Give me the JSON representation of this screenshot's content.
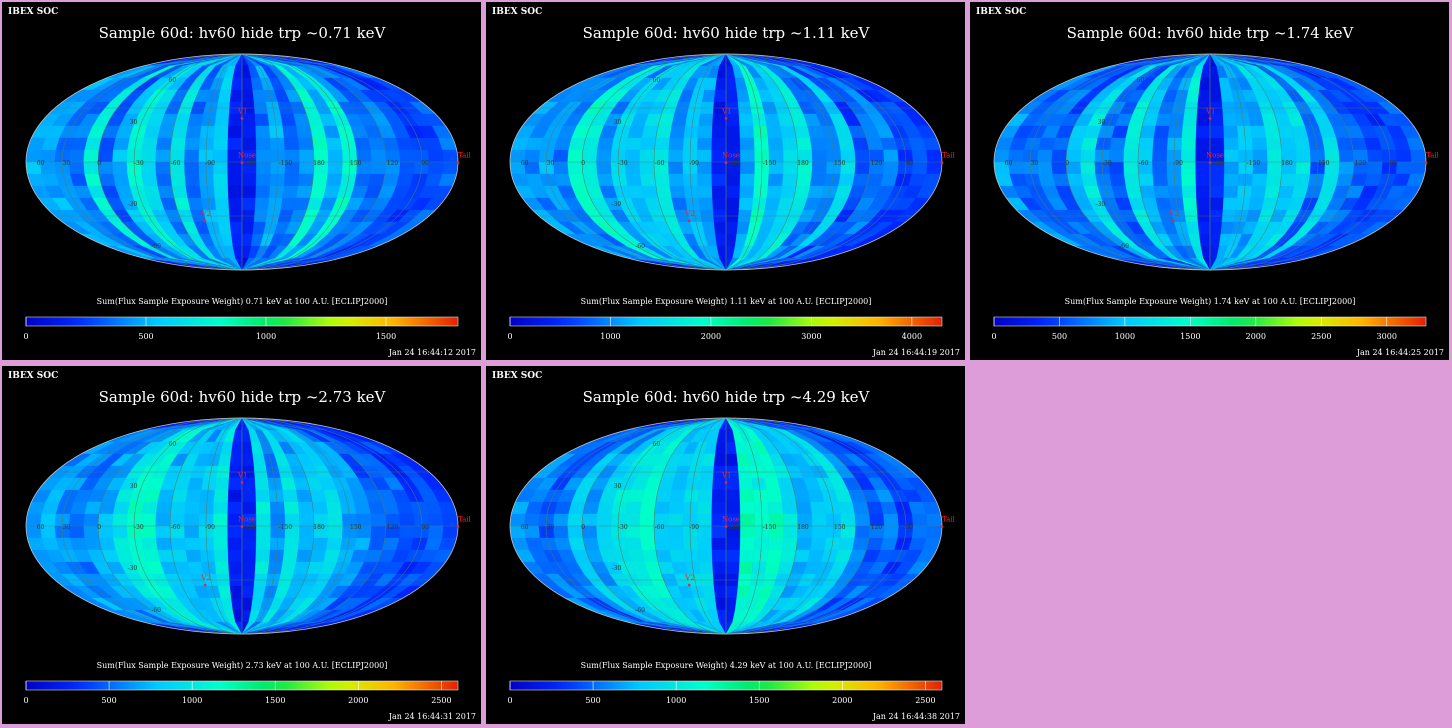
{
  "header_label": "IBEX SOC",
  "colors": {
    "background": "#dc9dd9",
    "panel": "#000000",
    "grid": "#5a7a5a",
    "marker": "#ff2020",
    "text": "#ffffff"
  },
  "chart_data": [
    {
      "type": "heatmap",
      "title": "Sample 60d: hv60 hide trp ~0.71 keV",
      "colorbar_label": "Sum(Flux Sample Exposure Weight)  0.71 keV at 100 A.U. [ECLIPJ2000]",
      "colorbar_ticks": [
        "0",
        "500",
        "1000",
        "1500"
      ],
      "colorbar_range": [
        0,
        1800
      ],
      "timestamp": "Jan 24 16:44:12 2017",
      "level": 0.3,
      "meridian_labels": [
        "60",
        "30",
        "0",
        "-30",
        "-60",
        "-90",
        "-120",
        "-150",
        "180",
        "150",
        "120",
        "90"
      ],
      "latitude_labels": [
        "60",
        "30",
        "-30",
        "-60"
      ],
      "markers": [
        "V1",
        "Nose",
        "V2",
        "Tail"
      ]
    },
    {
      "type": "heatmap",
      "title": "Sample 60d: hv60 hide trp ~1.11 keV",
      "colorbar_label": "Sum(Flux Sample Exposure Weight)  1.11 keV at 100 A.U. [ECLIPJ2000]",
      "colorbar_ticks": [
        "0",
        "1000",
        "2000",
        "3000",
        "4000"
      ],
      "colorbar_range": [
        0,
        4300
      ],
      "timestamp": "Jan 24 16:44:19 2017",
      "level": 0.32,
      "meridian_labels": [
        "60",
        "30",
        "0",
        "-30",
        "-60",
        "-90",
        "-120",
        "-150",
        "180",
        "150",
        "120",
        "90"
      ],
      "latitude_labels": [
        "60",
        "30",
        "-30",
        "-60"
      ],
      "markers": [
        "V1",
        "Nose",
        "V2",
        "Tail"
      ]
    },
    {
      "type": "heatmap",
      "title": "Sample 60d: hv60 hide trp ~1.74 keV",
      "colorbar_label": "Sum(Flux Sample Exposure Weight)  1.74 keV at 100 A.U. [ECLIPJ2000]",
      "colorbar_ticks": [
        "0",
        "500",
        "1000",
        "1500",
        "2000",
        "2500",
        "3000"
      ],
      "colorbar_range": [
        0,
        3300
      ],
      "timestamp": "Jan 24 16:44:25 2017",
      "level": 0.27,
      "meridian_labels": [
        "60",
        "30",
        "0",
        "-30",
        "-60",
        "-90",
        "-120",
        "-150",
        "180",
        "150",
        "120",
        "90"
      ],
      "latitude_labels": [
        "60",
        "30",
        "-30",
        "-60"
      ],
      "markers": [
        "V1",
        "Nose",
        "V2",
        "Tail"
      ]
    },
    {
      "type": "heatmap",
      "title": "Sample 60d: hv60 hide trp ~2.73 keV",
      "colorbar_label": "Sum(Flux Sample Exposure Weight)  2.73 keV at 100 A.U. [ECLIPJ2000]",
      "colorbar_ticks": [
        "0",
        "500",
        "1000",
        "1500",
        "2000",
        "2500"
      ],
      "colorbar_range": [
        0,
        2600
      ],
      "timestamp": "Jan 24 16:44:31 2017",
      "level": 0.33,
      "meridian_labels": [
        "60",
        "30",
        "0",
        "-30",
        "-60",
        "-90",
        "-120",
        "-150",
        "180",
        "150",
        "120",
        "90"
      ],
      "latitude_labels": [
        "60",
        "30",
        "-30",
        "-60"
      ],
      "markers": [
        "V1",
        "Nose",
        "V2",
        "Tail"
      ]
    },
    {
      "type": "heatmap",
      "title": "Sample 60d: hv60 hide trp ~4.29 keV",
      "colorbar_label": "Sum(Flux Sample Exposure Weight)  4.29 keV at 100 A.U. [ECLIPJ2000]",
      "colorbar_ticks": [
        "0",
        "500",
        "1000",
        "1500",
        "2000",
        "2500"
      ],
      "colorbar_range": [
        0,
        2600
      ],
      "timestamp": "Jan 24 16:44:38 2017",
      "level": 0.36,
      "meridian_labels": [
        "60",
        "30",
        "0",
        "-30",
        "-60",
        "-90",
        "-120",
        "-150",
        "180",
        "150",
        "120",
        "90"
      ],
      "latitude_labels": [
        "60",
        "30",
        "-30",
        "-60"
      ],
      "markers": [
        "V1",
        "Nose",
        "V2",
        "Tail"
      ]
    }
  ]
}
